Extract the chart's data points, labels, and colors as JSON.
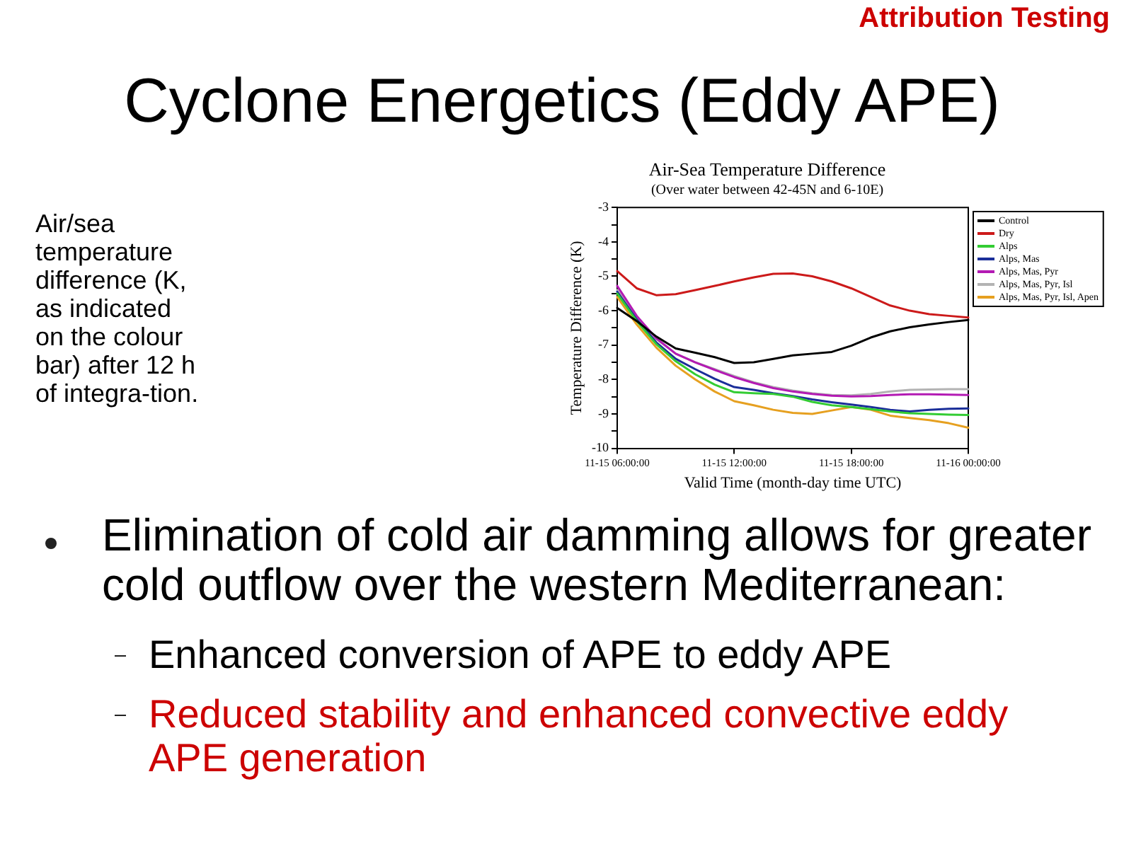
{
  "chart_data": {
    "type": "line",
    "title": "Air-Sea Temperature Difference",
    "subtitle": "(Over water between 42-45N and 6-10E)",
    "xlabel": "Valid Time (month-day time UTC)",
    "ylabel": "Temperature Difference (K)",
    "categories": [
      "11-15 06:00:00",
      null,
      null,
      null,
      null,
      null,
      "11-15 12:00:00",
      null,
      null,
      null,
      null,
      null,
      "11-15 18:00:00",
      null,
      null,
      null,
      null,
      null,
      "11-16 00:00:00"
    ],
    "ylim": [
      -10,
      -3
    ],
    "yticks": [
      -10,
      {
        "value": -9.5,
        "label": null
      },
      -9,
      {
        "value": -8.5,
        "label": null
      },
      -8,
      {
        "value": -7.5,
        "label": null
      },
      -7,
      {
        "value": -6.5,
        "label": null
      },
      -6,
      {
        "value": -5.5,
        "label": null
      },
      -5,
      {
        "value": -4.5,
        "label": null
      },
      -4,
      {
        "value": -3.5,
        "label": null
      },
      -3
    ],
    "series": [
      {
        "name": "Control",
        "color": "#000000",
        "values": [
          -5.92,
          -6.3,
          -6.75,
          -7.1,
          -7.22,
          -7.35,
          -7.52,
          -7.5,
          -7.4,
          -7.3,
          -7.25,
          -7.2,
          -7.02,
          -6.78,
          -6.6,
          -6.48,
          -6.4,
          -6.33,
          -6.27
        ]
      },
      {
        "name": "Dry",
        "color": "#cc1a1a",
        "values": [
          -4.85,
          -5.35,
          -5.55,
          -5.52,
          -5.4,
          -5.28,
          -5.15,
          -5.03,
          -4.93,
          -4.92,
          -5.0,
          -5.15,
          -5.35,
          -5.6,
          -5.85,
          -6.0,
          -6.1,
          -6.15,
          -6.2
        ]
      },
      {
        "name": "Alps",
        "color": "#33cc33",
        "values": [
          -5.5,
          -6.3,
          -6.97,
          -7.47,
          -7.85,
          -8.15,
          -8.37,
          -8.4,
          -8.42,
          -8.5,
          -8.65,
          -8.75,
          -8.8,
          -8.86,
          -8.93,
          -8.98,
          -9.0,
          -9.02,
          -9.03
        ]
      },
      {
        "name": "Alps, Mas",
        "color": "#1a2e99",
        "values": [
          -5.45,
          -6.25,
          -6.92,
          -7.4,
          -7.7,
          -7.98,
          -8.22,
          -8.3,
          -8.4,
          -8.48,
          -8.58,
          -8.66,
          -8.73,
          -8.8,
          -8.88,
          -8.93,
          -8.88,
          -8.85,
          -8.84
        ]
      },
      {
        "name": "Alps, Mas, Pyr",
        "color": "#b31ab3",
        "values": [
          -5.28,
          -6.15,
          -6.8,
          -7.25,
          -7.5,
          -7.72,
          -7.93,
          -8.1,
          -8.25,
          -8.35,
          -8.42,
          -8.47,
          -8.49,
          -8.48,
          -8.45,
          -8.43,
          -8.43,
          -8.44,
          -8.45
        ]
      },
      {
        "name": "Alps, Mas, Pyr, Isl",
        "color": "#b3b3b3",
        "values": [
          -5.4,
          -6.2,
          -6.82,
          -7.25,
          -7.5,
          -7.7,
          -7.9,
          -8.08,
          -8.22,
          -8.32,
          -8.4,
          -8.45,
          -8.46,
          -8.42,
          -8.35,
          -8.3,
          -8.29,
          -8.28,
          -8.28
        ]
      },
      {
        "name": "Alps, Mas, Pyr, Isl, Apen",
        "color": "#e6a020",
        "values": [
          -5.6,
          -6.4,
          -7.07,
          -7.6,
          -8.0,
          -8.35,
          -8.63,
          -8.75,
          -8.88,
          -8.97,
          -9.0,
          -8.9,
          -8.8,
          -8.88,
          -9.05,
          -9.12,
          -9.18,
          -9.27,
          -9.4
        ]
      }
    ],
    "legend": "top right",
    "marker": "none",
    "line_style": "solid",
    "annotations": [
      "Attribution Testing",
      "Cyclone Energetics (Eddy APE)",
      "Air/sea temperature difference (K, as indicated on the colour bar) after 12 h of integra-tion.",
      "Elimination of cold air damming allows for greater cold outflow over the western Mediterranean:",
      "Enhanced conversion of APE to eddy APE",
      "Reduced stability and enhanced convective eddy APE generation"
    ]
  }
}
